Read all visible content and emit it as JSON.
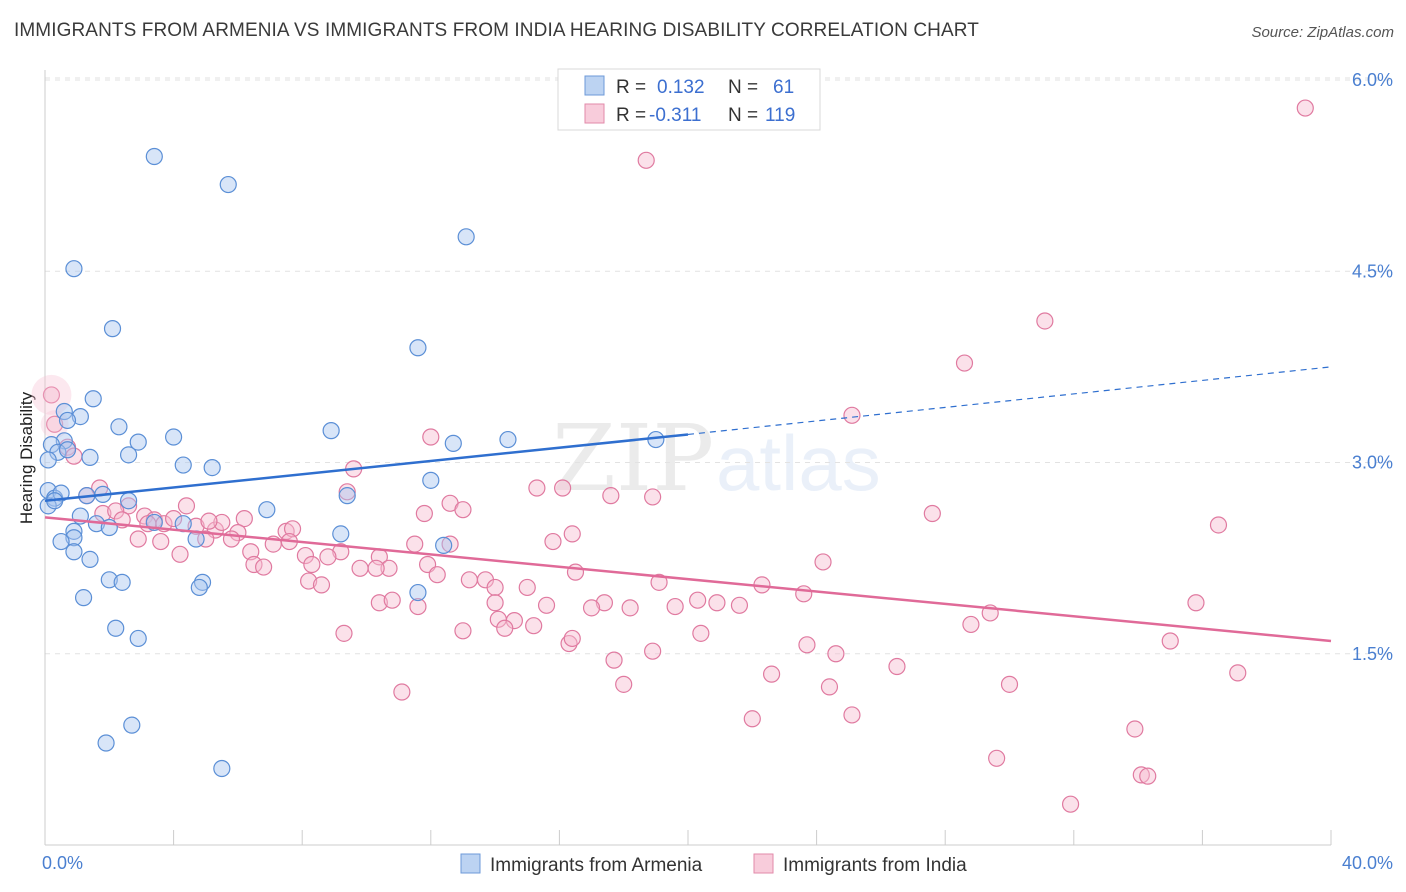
{
  "title": "IMMIGRANTS FROM ARMENIA VS IMMIGRANTS FROM INDIA HEARING DISABILITY CORRELATION CHART",
  "source": "Source: ZipAtlas.com",
  "watermark": {
    "zip": "ZIP",
    "atlas": "atlas"
  },
  "colors": {
    "armenia_fill": "#a9c6ef",
    "armenia_stroke": "#5b8fd6",
    "armenia_line": "#2f6fcf",
    "india_fill": "#f6bcd0",
    "india_stroke": "#e07aa0",
    "india_line": "#e06a98",
    "tick_text": "#4a7fd0",
    "grid": "#e2e2e2"
  },
  "stats": {
    "armenia": {
      "r_label": "R =",
      "r": "0.132",
      "n_label": "N =",
      "n": "61"
    },
    "india": {
      "r_label": "R =",
      "r": "-0.311",
      "n_label": "N =",
      "n": "119"
    }
  },
  "legend": {
    "armenia": "Immigrants from Armenia",
    "india": "Immigrants from India"
  },
  "chart_data": {
    "type": "scatter",
    "title": "IMMIGRANTS FROM ARMENIA VS IMMIGRANTS FROM INDIA HEARING DISABILITY CORRELATION CHART",
    "xlabel": "",
    "ylabel": "Hearing Disability",
    "xlim": [
      0,
      40
    ],
    "ylim": [
      0,
      6.2
    ],
    "x_tick_labels": [
      "0.0%",
      "40.0%"
    ],
    "y_ticks": [
      1.5,
      3.0,
      4.5,
      6.0
    ],
    "y_tick_labels": [
      "1.5%",
      "3.0%",
      "4.5%",
      "6.0%"
    ],
    "grid": "horizontal dashed",
    "legend_position": "bottom-center",
    "series": [
      {
        "name": "Immigrants from Armenia",
        "r": 0.132,
        "n": 61,
        "trend": {
          "x": [
            0,
            20
          ],
          "y": [
            2.7,
            3.22
          ],
          "dashed_extension": {
            "x": [
              20,
              40
            ],
            "y": [
              3.22,
              3.75
            ]
          }
        },
        "points": [
          [
            3.4,
            5.4
          ],
          [
            5.7,
            5.18
          ],
          [
            13.1,
            4.77
          ],
          [
            0.9,
            4.52
          ],
          [
            2.1,
            4.05
          ],
          [
            11.6,
            3.9
          ],
          [
            1.5,
            3.5
          ],
          [
            0.6,
            3.4
          ],
          [
            1.1,
            3.36
          ],
          [
            0.7,
            3.33
          ],
          [
            2.3,
            3.28
          ],
          [
            8.9,
            3.25
          ],
          [
            0.6,
            3.17
          ],
          [
            4.0,
            3.2
          ],
          [
            2.9,
            3.16
          ],
          [
            0.2,
            3.14
          ],
          [
            12.7,
            3.15
          ],
          [
            14.4,
            3.18
          ],
          [
            19.0,
            3.18
          ],
          [
            0.4,
            3.08
          ],
          [
            0.7,
            3.1
          ],
          [
            1.4,
            3.04
          ],
          [
            2.6,
            3.06
          ],
          [
            0.1,
            3.02
          ],
          [
            4.3,
            2.98
          ],
          [
            5.2,
            2.96
          ],
          [
            12.0,
            2.86
          ],
          [
            0.1,
            2.78
          ],
          [
            0.3,
            2.72
          ],
          [
            0.5,
            2.76
          ],
          [
            1.3,
            2.74
          ],
          [
            1.8,
            2.75
          ],
          [
            2.6,
            2.7
          ],
          [
            9.4,
            2.74
          ],
          [
            0.1,
            2.66
          ],
          [
            0.3,
            2.7
          ],
          [
            6.9,
            2.63
          ],
          [
            1.1,
            2.58
          ],
          [
            1.6,
            2.52
          ],
          [
            3.4,
            2.53
          ],
          [
            4.3,
            2.52
          ],
          [
            2.0,
            2.49
          ],
          [
            0.9,
            2.46
          ],
          [
            9.2,
            2.44
          ],
          [
            0.9,
            2.41
          ],
          [
            0.5,
            2.38
          ],
          [
            4.7,
            2.4
          ],
          [
            12.4,
            2.35
          ],
          [
            0.9,
            2.3
          ],
          [
            1.4,
            2.24
          ],
          [
            2.0,
            2.08
          ],
          [
            2.4,
            2.06
          ],
          [
            4.9,
            2.06
          ],
          [
            4.8,
            2.02
          ],
          [
            1.2,
            1.94
          ],
          [
            11.6,
            1.98
          ],
          [
            2.2,
            1.7
          ],
          [
            2.9,
            1.62
          ],
          [
            2.7,
            0.94
          ],
          [
            1.9,
            0.8
          ],
          [
            5.5,
            0.6
          ]
        ]
      },
      {
        "name": "Immigrants from India",
        "r": -0.311,
        "n": 119,
        "trend": {
          "x": [
            0,
            40
          ],
          "y": [
            2.57,
            1.6
          ]
        },
        "points": [
          [
            0.2,
            3.53
          ],
          [
            39.2,
            5.78
          ],
          [
            18.7,
            5.37
          ],
          [
            31.1,
            4.11
          ],
          [
            28.6,
            3.78
          ],
          [
            25.1,
            3.37
          ],
          [
            0.3,
            3.3
          ],
          [
            0.7,
            3.12
          ],
          [
            0.9,
            3.05
          ],
          [
            12.0,
            3.2
          ],
          [
            9.6,
            2.95
          ],
          [
            16.1,
            2.8
          ],
          [
            18.9,
            2.73
          ],
          [
            15.3,
            2.8
          ],
          [
            9.4,
            2.77
          ],
          [
            1.3,
            2.74
          ],
          [
            17.6,
            2.74
          ],
          [
            12.6,
            2.68
          ],
          [
            1.7,
            2.8
          ],
          [
            2.6,
            2.66
          ],
          [
            13.0,
            2.63
          ],
          [
            4.4,
            2.66
          ],
          [
            6.2,
            2.56
          ],
          [
            1.8,
            2.6
          ],
          [
            2.2,
            2.62
          ],
          [
            3.1,
            2.58
          ],
          [
            3.4,
            2.55
          ],
          [
            3.7,
            2.52
          ],
          [
            4.0,
            2.56
          ],
          [
            4.7,
            2.5
          ],
          [
            5.3,
            2.47
          ],
          [
            5.5,
            2.53
          ],
          [
            6.0,
            2.45
          ],
          [
            7.5,
            2.46
          ],
          [
            7.7,
            2.48
          ],
          [
            11.8,
            2.6
          ],
          [
            27.6,
            2.6
          ],
          [
            36.5,
            2.51
          ],
          [
            16.4,
            2.44
          ],
          [
            2.9,
            2.4
          ],
          [
            3.6,
            2.38
          ],
          [
            5.0,
            2.4
          ],
          [
            5.8,
            2.4
          ],
          [
            7.1,
            2.36
          ],
          [
            11.5,
            2.36
          ],
          [
            12.6,
            2.36
          ],
          [
            15.8,
            2.38
          ],
          [
            4.2,
            2.28
          ],
          [
            6.4,
            2.3
          ],
          [
            8.1,
            2.27
          ],
          [
            9.2,
            2.3
          ],
          [
            8.8,
            2.26
          ],
          [
            10.4,
            2.26
          ],
          [
            6.5,
            2.2
          ],
          [
            6.8,
            2.18
          ],
          [
            8.3,
            2.2
          ],
          [
            9.8,
            2.17
          ],
          [
            10.7,
            2.17
          ],
          [
            11.9,
            2.2
          ],
          [
            16.5,
            2.14
          ],
          [
            24.2,
            2.22
          ],
          [
            8.2,
            2.07
          ],
          [
            8.6,
            2.04
          ],
          [
            13.2,
            2.08
          ],
          [
            13.7,
            2.08
          ],
          [
            14.0,
            2.02
          ],
          [
            15.0,
            2.02
          ],
          [
            19.1,
            2.06
          ],
          [
            22.3,
            2.04
          ],
          [
            10.4,
            1.9
          ],
          [
            10.8,
            1.92
          ],
          [
            11.6,
            1.87
          ],
          [
            15.6,
            1.88
          ],
          [
            17.4,
            1.9
          ],
          [
            18.2,
            1.86
          ],
          [
            19.6,
            1.87
          ],
          [
            20.3,
            1.92
          ],
          [
            20.9,
            1.9
          ],
          [
            23.6,
            1.97
          ],
          [
            35.8,
            1.9
          ],
          [
            29.4,
            1.82
          ],
          [
            14.1,
            1.77
          ],
          [
            14.6,
            1.76
          ],
          [
            13.0,
            1.68
          ],
          [
            14.3,
            1.7
          ],
          [
            15.2,
            1.72
          ],
          [
            9.3,
            1.66
          ],
          [
            20.4,
            1.66
          ],
          [
            28.8,
            1.73
          ],
          [
            16.3,
            1.58
          ],
          [
            16.4,
            1.62
          ],
          [
            18.9,
            1.52
          ],
          [
            23.7,
            1.57
          ],
          [
            24.6,
            1.5
          ],
          [
            35.0,
            1.6
          ],
          [
            17.7,
            1.45
          ],
          [
            26.5,
            1.4
          ],
          [
            22.6,
            1.34
          ],
          [
            37.1,
            1.35
          ],
          [
            18.0,
            1.26
          ],
          [
            24.4,
            1.24
          ],
          [
            30.0,
            1.26
          ],
          [
            11.1,
            1.2
          ],
          [
            25.1,
            1.02
          ],
          [
            22.0,
            0.99
          ],
          [
            33.9,
            0.91
          ],
          [
            29.6,
            0.68
          ],
          [
            34.1,
            0.55
          ],
          [
            34.3,
            0.54
          ],
          [
            31.9,
            0.32
          ],
          [
            2.4,
            2.55
          ],
          [
            3.2,
            2.52
          ],
          [
            7.6,
            2.38
          ],
          [
            10.3,
            2.17
          ],
          [
            17.0,
            1.86
          ],
          [
            12.2,
            2.12
          ],
          [
            5.1,
            2.54
          ],
          [
            14.0,
            1.9
          ],
          [
            21.6,
            1.88
          ]
        ]
      }
    ]
  }
}
